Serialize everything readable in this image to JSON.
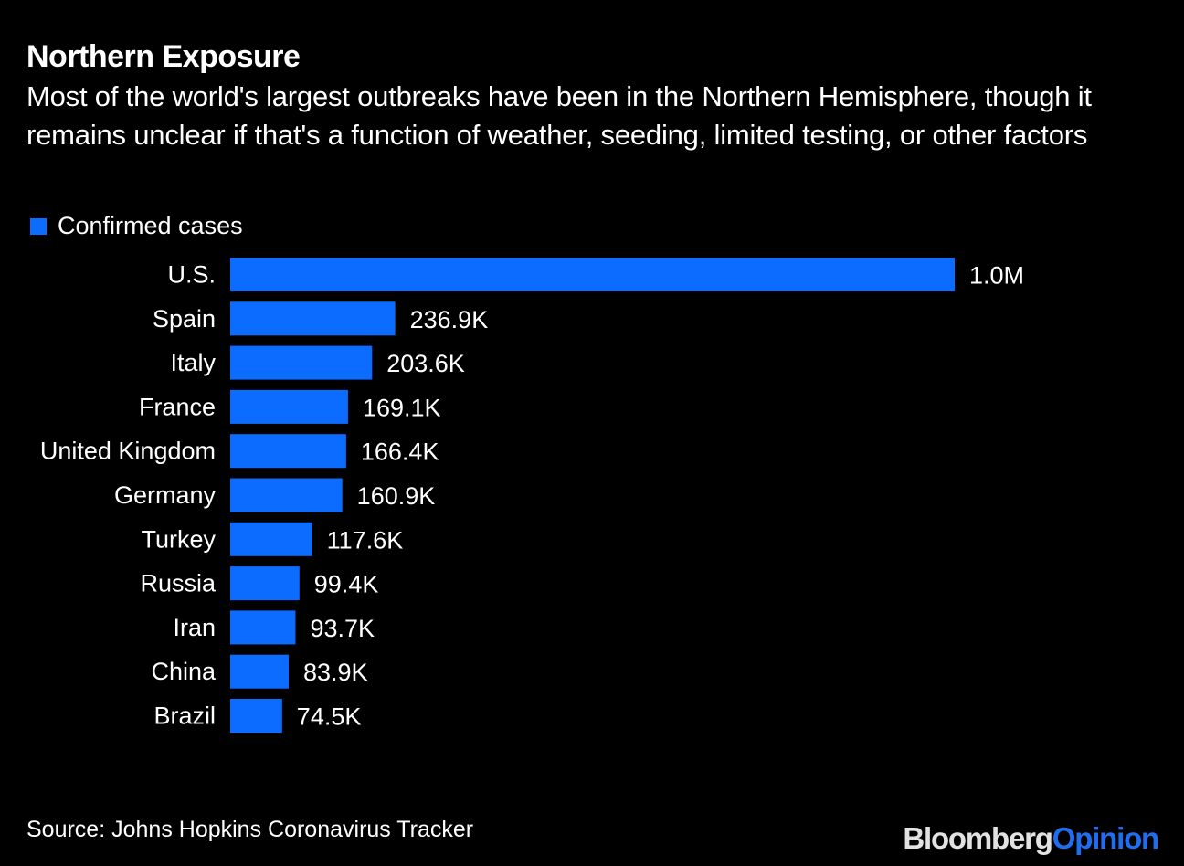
{
  "chart_data": {
    "type": "bar",
    "orientation": "horizontal",
    "title": "Northern Exposure",
    "subtitle": "Most of the world's largest outbreaks have been in the Northern Hemisphere, though it remains unclear if that's a function of weather, seeding, limited testing, or other factors",
    "legend": [
      {
        "name": "Confirmed cases",
        "color": "#0b6cff"
      }
    ],
    "legend_position": "top-left",
    "categories": [
      "U.S.",
      "Spain",
      "Italy",
      "France",
      "United Kingdom",
      "Germany",
      "Turkey",
      "Russia",
      "Iran",
      "China",
      "Brazil"
    ],
    "series": [
      {
        "name": "Confirmed cases",
        "values": [
          1040000,
          236900,
          203600,
          169100,
          166400,
          160900,
          117600,
          99400,
          93700,
          83900,
          74500
        ],
        "value_labels": [
          "1.0M",
          "236.9K",
          "203.6K",
          "169.1K",
          "166.4K",
          "160.9K",
          "117.6K",
          "99.4K",
          "93.7K",
          "83.9K",
          "74.5K"
        ]
      }
    ],
    "xlabel": "",
    "ylabel": "",
    "xlim": [
      0,
      1040000
    ],
    "grid": false,
    "source": "Source: Johns Hopkins Coronavirus Tracker"
  },
  "footer": {
    "source": "Source: Johns Hopkins Coronavirus Tracker",
    "brand_part1": "Bloomberg",
    "brand_part2": "Opinion"
  },
  "colors": {
    "background": "#000000",
    "bar": "#0b6cff",
    "text": "#ffffff",
    "brand_gray": "#e2e2e2",
    "brand_blue": "#1f6ef0"
  }
}
